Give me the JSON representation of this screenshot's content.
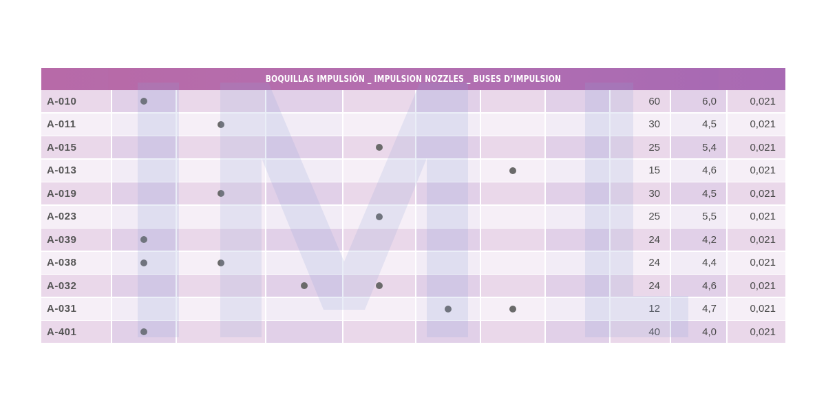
{
  "banner_title": "BOQUILLAS IMPULSIÓN _ IMPULSION NOZZLES _ BUSES D’IMPULSION",
  "colors": {
    "banner": "#b36fb0",
    "dot": "#6a6a6a"
  },
  "rows": [
    {
      "code": "A-010",
      "dots": [
        0
      ],
      "v1": "60",
      "v2": "6,0",
      "v3": "0,021"
    },
    {
      "code": "A-011",
      "dots": [
        1
      ],
      "v1": "30",
      "v2": "4,5",
      "v3": "0,021"
    },
    {
      "code": "A-015",
      "dots": [
        3
      ],
      "v1": "25",
      "v2": "5,4",
      "v3": "0,021"
    },
    {
      "code": "A-013",
      "dots": [
        5
      ],
      "v1": "15",
      "v2": "4,6",
      "v3": "0,021"
    },
    {
      "code": "A-019",
      "dots": [
        1
      ],
      "v1": "30",
      "v2": "4,5",
      "v3": "0,021"
    },
    {
      "code": "A-023",
      "dots": [
        3
      ],
      "v1": "25",
      "v2": "5,5",
      "v3": "0,021"
    },
    {
      "code": "A-039",
      "dots": [
        0
      ],
      "v1": "24",
      "v2": "4,2",
      "v3": "0,021"
    },
    {
      "code": "A-038",
      "dots": [
        0,
        1
      ],
      "v1": "24",
      "v2": "4,4",
      "v3": "0,021"
    },
    {
      "code": "A-032",
      "dots": [
        2,
        3
      ],
      "v1": "24",
      "v2": "4,6",
      "v3": "0,021"
    },
    {
      "code": "A-031",
      "dots": [
        4,
        5
      ],
      "v1": "12",
      "v2": "4,7",
      "v3": "0,021"
    },
    {
      "code": "A-401",
      "dots": [
        0
      ],
      "v1": "40",
      "v2": "4,0",
      "v3": "0,021"
    }
  ]
}
